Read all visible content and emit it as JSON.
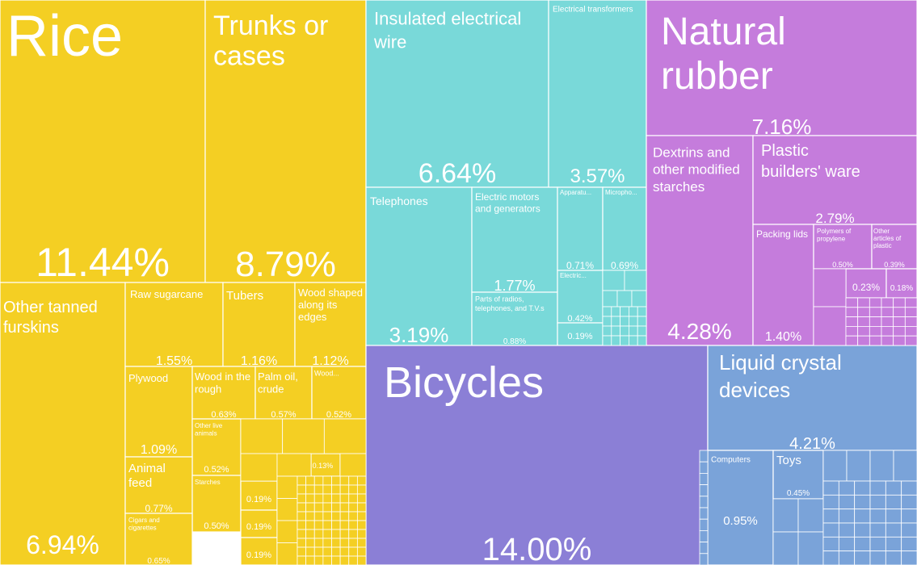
{
  "chart_data": {
    "type": "treemap",
    "title": "",
    "unit": "%",
    "groups": [
      {
        "name": "yellow",
        "color": "#f4cf23"
      },
      {
        "name": "cyan",
        "color": "#79d9d9"
      },
      {
        "name": "purple",
        "color": "#c57cdc"
      },
      {
        "name": "violet",
        "color": "#8b7fd6"
      },
      {
        "name": "blue",
        "color": "#7aa3d9"
      }
    ],
    "items": [
      {
        "name": "Rice",
        "label": "11.44%",
        "value": 11.44,
        "group": "yellow"
      },
      {
        "name": "Trunks or cases",
        "label": "8.79%",
        "value": 8.79,
        "group": "yellow"
      },
      {
        "name": "Other tanned furskins",
        "label": "6.94%",
        "value": 6.94,
        "group": "yellow"
      },
      {
        "name": "Raw sugarcane",
        "label": "1.55%",
        "value": 1.55,
        "group": "yellow"
      },
      {
        "name": "Tubers",
        "label": "1.16%",
        "value": 1.16,
        "group": "yellow"
      },
      {
        "name": "Wood shaped along its edges",
        "label": "1.12%",
        "value": 1.12,
        "group": "yellow"
      },
      {
        "name": "Plywood",
        "label": "1.09%",
        "value": 1.09,
        "group": "yellow"
      },
      {
        "name": "Wood in the rough",
        "label": "0.63%",
        "value": 0.63,
        "group": "yellow"
      },
      {
        "name": "Palm oil, crude",
        "label": "0.57%",
        "value": 0.57,
        "group": "yellow"
      },
      {
        "name": "Wood...",
        "label": "0.52%",
        "value": 0.52,
        "group": "yellow"
      },
      {
        "name": "Other live animals",
        "label": "0.52%",
        "value": 0.52,
        "group": "yellow"
      },
      {
        "name": "Animal feed",
        "label": "0.77%",
        "value": 0.77,
        "group": "yellow"
      },
      {
        "name": "Starches",
        "label": "0.50%",
        "value": 0.5,
        "group": "yellow"
      },
      {
        "name": "Cigars and cigarettes",
        "label": "0.65%",
        "value": 0.65,
        "group": "yellow"
      },
      {
        "name": "",
        "label": "0.19%",
        "value": 0.19,
        "group": "yellow"
      },
      {
        "name": "",
        "label": "0.19%",
        "value": 0.19,
        "group": "yellow"
      },
      {
        "name": "",
        "label": "0.19%",
        "value": 0.19,
        "group": "yellow"
      },
      {
        "name": "",
        "label": "0.13%",
        "value": 0.13,
        "group": "yellow"
      },
      {
        "name": "Insulated electrical wire",
        "label": "6.64%",
        "value": 6.64,
        "group": "cyan"
      },
      {
        "name": "Electrical transformers",
        "label": "3.57%",
        "value": 3.57,
        "group": "cyan"
      },
      {
        "name": "Telephones",
        "label": "3.19%",
        "value": 3.19,
        "group": "cyan"
      },
      {
        "name": "Electric motors and generators",
        "label": "1.77%",
        "value": 1.77,
        "group": "cyan"
      },
      {
        "name": "Parts of radios, telephones, and T.V.s",
        "label": "0.88%",
        "value": 0.88,
        "group": "cyan"
      },
      {
        "name": "Apparatu...",
        "label": "0.71%",
        "value": 0.71,
        "group": "cyan"
      },
      {
        "name": "Micropho...",
        "label": "0.69%",
        "value": 0.69,
        "group": "cyan"
      },
      {
        "name": "Electric...",
        "label": "0.42%",
        "value": 0.42,
        "group": "cyan"
      },
      {
        "name": "",
        "label": "0.19%",
        "value": 0.19,
        "group": "cyan"
      },
      {
        "name": "Natural rubber",
        "label": "7.16%",
        "value": 7.16,
        "group": "purple"
      },
      {
        "name": "Dextrins and other modified starches",
        "label": "4.28%",
        "value": 4.28,
        "group": "purple"
      },
      {
        "name": "Plastic builders' ware",
        "label": "2.79%",
        "value": 2.79,
        "group": "purple"
      },
      {
        "name": "Packing lids",
        "label": "1.40%",
        "value": 1.4,
        "group": "purple"
      },
      {
        "name": "Polymers of propylene",
        "label": "0.50%",
        "value": 0.5,
        "group": "purple"
      },
      {
        "name": "Other articles of plastic",
        "label": "0.39%",
        "value": 0.39,
        "group": "purple"
      },
      {
        "name": "",
        "label": "0.23%",
        "value": 0.23,
        "group": "purple"
      },
      {
        "name": "",
        "label": "0.18%",
        "value": 0.18,
        "group": "purple"
      },
      {
        "name": "Bicycles",
        "label": "14.00%",
        "value": 14.0,
        "group": "violet"
      },
      {
        "name": "Liquid crystal devices",
        "label": "4.21%",
        "value": 4.21,
        "group": "blue"
      },
      {
        "name": "Computers",
        "label": "0.95%",
        "value": 0.95,
        "group": "blue"
      },
      {
        "name": "Toys",
        "label": "0.45%",
        "value": 0.45,
        "group": "blue"
      }
    ]
  }
}
